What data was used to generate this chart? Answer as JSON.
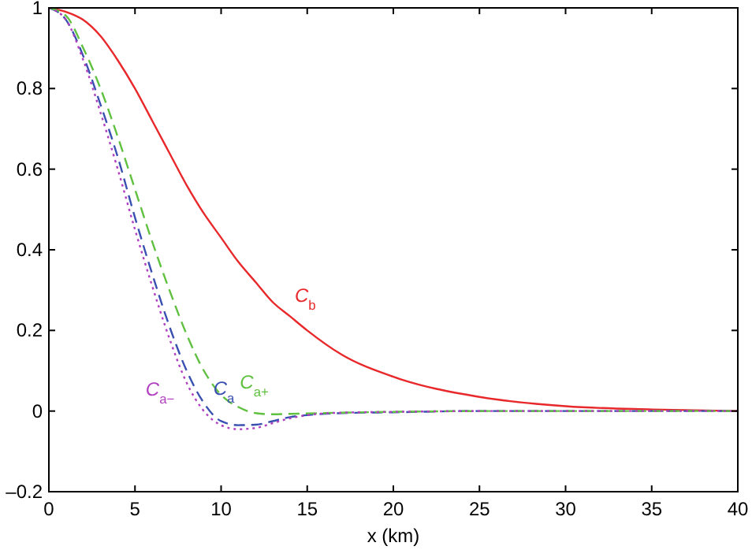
{
  "chart_data": {
    "type": "line",
    "xlabel": "x (km)",
    "xlim": [
      0,
      40
    ],
    "ylim": [
      -0.2,
      1
    ],
    "xticks": [
      0,
      5,
      10,
      15,
      20,
      25,
      30,
      35,
      40
    ],
    "yticks": [
      {
        "value": -0.2,
        "label": "–0.2"
      },
      0,
      0.2,
      0.4,
      0.6,
      0.8,
      1
    ],
    "grid": false,
    "legend": false,
    "marker": "none",
    "x": [
      0,
      1,
      2,
      3,
      4,
      5,
      6,
      7,
      8,
      9,
      10,
      11,
      12,
      13,
      14,
      15,
      17,
      20,
      25,
      30,
      35,
      40
    ],
    "series": [
      {
        "name": "C$_{b}$",
        "color": "#e8282a",
        "line_style": "solid",
        "values": [
          1,
          0.99,
          0.97,
          0.93,
          0.87,
          0.8,
          0.72,
          0.64,
          0.56,
          0.49,
          0.43,
          0.37,
          0.32,
          0.27,
          0.235,
          0.2,
          0.14,
          0.085,
          0.035,
          0.012,
          0.004,
          0
        ]
      },
      {
        "name": "C$_{a}$",
        "color": "#3a50b0",
        "line_style": "dashed",
        "values": [
          1,
          0.97,
          0.88,
          0.76,
          0.63,
          0.48,
          0.34,
          0.21,
          0.1,
          0.02,
          -0.025,
          -0.035,
          -0.034,
          -0.025,
          -0.015,
          -0.01,
          -0.005,
          -0.003,
          0,
          0,
          0,
          0
        ]
      },
      {
        "name": "C$_{a+}$",
        "color": "#60c040",
        "line_style": "dashed",
        "values": [
          1,
          0.98,
          0.9,
          0.8,
          0.68,
          0.55,
          0.42,
          0.3,
          0.19,
          0.1,
          0.04,
          0.01,
          -0.005,
          -0.008,
          -0.007,
          -0.006,
          -0.004,
          -0.002,
          0,
          0,
          0,
          0
        ]
      },
      {
        "name": "C$_{a−}$",
        "color": "#b040c0",
        "line_style": "dotted",
        "values": [
          1,
          0.97,
          0.87,
          0.74,
          0.6,
          0.45,
          0.31,
          0.18,
          0.07,
          0,
          -0.035,
          -0.045,
          -0.042,
          -0.03,
          -0.018,
          -0.01,
          -0.004,
          -0.002,
          0,
          0,
          0,
          0
        ]
      }
    ]
  }
}
